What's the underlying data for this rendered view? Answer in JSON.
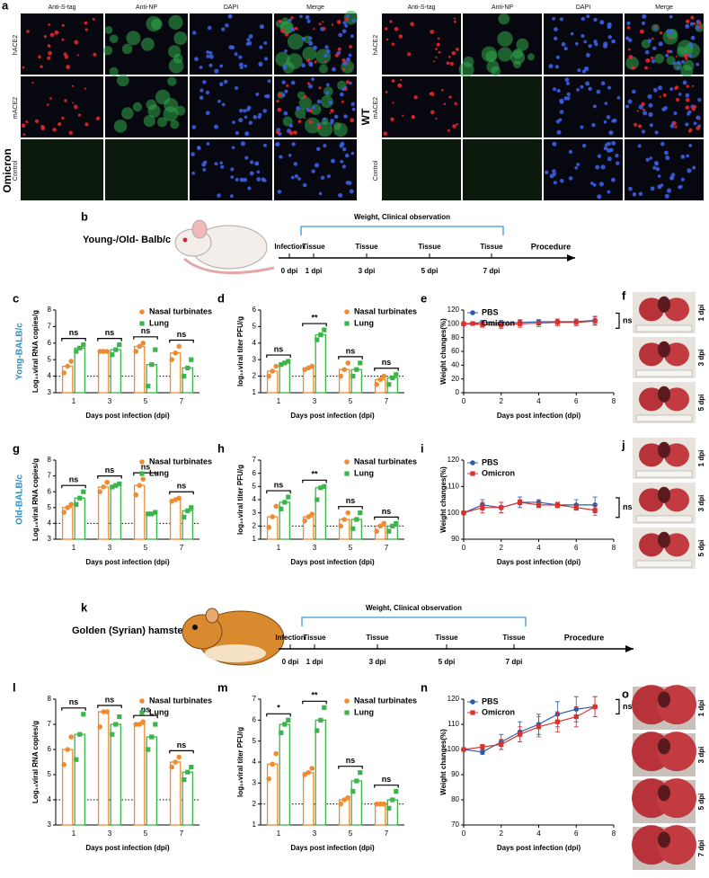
{
  "figure_a": {
    "panel": "a",
    "groups": [
      {
        "label": "Omicron",
        "columns": [
          "Anti-S-tag",
          "Anti-NP",
          "DAPI",
          "Merge"
        ],
        "rows": [
          "hACE2",
          "mACE2",
          "Control"
        ]
      },
      {
        "label": "WT",
        "columns": [
          "Anti-S-tag",
          "Anti-NP",
          "DAPI",
          "Merge"
        ],
        "rows": [
          "hACE2",
          "mACE2",
          "Control"
        ]
      }
    ]
  },
  "timelines": [
    {
      "panel": "b",
      "subject": "Young-/Old- Balb/c",
      "bracket": "Weight, Clinical observation",
      "above": [
        "Infection",
        "Tissue",
        "Tissue",
        "Tissue",
        "Tissue"
      ],
      "days": [
        "0 dpi",
        "1 dpi",
        "3 dpi",
        "5 dpi",
        "7 dpi"
      ],
      "end": "Procedure"
    },
    {
      "panel": "k",
      "subject": "Golden (Syrian) hamster",
      "bracket": "Weight, Clinical observation",
      "above": [
        "Infection",
        "Tissue",
        "Tissue",
        "Tissue",
        "Tissue"
      ],
      "days": [
        "0 dpi",
        "1 dpi",
        "3 dpi",
        "5 dpi",
        "7 dpi"
      ],
      "end": "Procedure"
    }
  ],
  "photos": [
    {
      "panel": "f",
      "labels": [
        "1 dpi",
        "3 dpi",
        "5 dpi"
      ]
    },
    {
      "panel": "j",
      "labels": [
        "1 dpi",
        "3 dpi",
        "5 dpi"
      ]
    },
    {
      "panel": "o",
      "labels": [
        "1 dpi",
        "3 dpi",
        "5 dpi",
        "7 dpi"
      ]
    }
  ],
  "chart_data": [
    {
      "type": "bar",
      "panel": "c",
      "side_label": "Yong-BALB/c",
      "categories": [
        "1",
        "3",
        "5",
        "7"
      ],
      "xlabel": "Days post infection (dpi)",
      "ylabel": "Log₁₀viral RNA copies/g",
      "ylim": [
        3,
        8
      ],
      "yticks": [
        3,
        4,
        5,
        6,
        7,
        8
      ],
      "threshold": 4,
      "legend": "upper right",
      "series": [
        {
          "name": "Nasal turbinates",
          "color": "#f28a2e",
          "marker": "circle",
          "values": [
            4.6,
            5.5,
            5.8,
            5.4
          ],
          "points": [
            [
              4.2,
              4.6,
              4.9
            ],
            [
              5.5,
              5.5,
              5.5
            ],
            [
              5.5,
              5.8,
              6.0
            ],
            [
              5.0,
              5.4,
              5.8
            ]
          ]
        },
        {
          "name": "Lung",
          "color": "#3cb44b",
          "marker": "square",
          "values": [
            5.7,
            5.6,
            4.7,
            4.5
          ],
          "points": [
            [
              5.5,
              5.7,
              5.9
            ],
            [
              5.3,
              5.6,
              5.9
            ],
            [
              3.4,
              4.7,
              5.6
            ],
            [
              4.0,
              4.5,
              5.0
            ]
          ]
        }
      ],
      "annotations": [
        "ns",
        "ns",
        "ns",
        "ns"
      ]
    },
    {
      "type": "bar",
      "panel": "d",
      "categories": [
        "1",
        "3",
        "5",
        "7"
      ],
      "xlabel": "Days post infection (dpi)",
      "ylabel": "log₁₀viral titer PFU/g",
      "ylim": [
        1,
        6
      ],
      "yticks": [
        1,
        2,
        3,
        4,
        5,
        6
      ],
      "threshold": 2,
      "legend": "upper right",
      "series": [
        {
          "name": "Nasal turbinates",
          "color": "#f28a2e",
          "marker": "circle",
          "values": [
            2.3,
            2.5,
            2.4,
            1.8
          ],
          "points": [
            [
              2.0,
              2.3,
              2.6
            ],
            [
              2.4,
              2.5,
              2.6
            ],
            [
              2.0,
              2.4,
              2.8
            ],
            [
              1.5,
              1.8,
              2.0
            ]
          ]
        },
        {
          "name": "Lung",
          "color": "#3cb44b",
          "marker": "square",
          "values": [
            2.8,
            4.5,
            2.4,
            1.9
          ],
          "points": [
            [
              2.7,
              2.8,
              2.9
            ],
            [
              4.2,
              4.5,
              4.8
            ],
            [
              2.0,
              2.4,
              2.8
            ],
            [
              1.5,
              1.9,
              2.1
            ]
          ]
        }
      ],
      "annotations": [
        "ns",
        "**",
        "ns",
        "ns"
      ]
    },
    {
      "type": "line",
      "panel": "e",
      "x": [
        0,
        1,
        2,
        3,
        4,
        5,
        6,
        7
      ],
      "xlim": [
        0,
        8
      ],
      "xticks": [
        0,
        2,
        4,
        6,
        8
      ],
      "ylim": [
        0,
        120
      ],
      "yticks": [
        0,
        20,
        40,
        60,
        80,
        100,
        120
      ],
      "xlabel": "Days post infection (dpi)",
      "ylabel": "Weight changes(%)",
      "legend": "upper left",
      "annotation": "ns",
      "series": [
        {
          "name": "PBS",
          "color": "#2a5caa",
          "marker": "circle",
          "values": [
            100,
            102,
            101,
            102,
            103,
            103,
            103,
            105
          ],
          "errors": [
            0,
            3,
            4,
            4,
            3,
            4,
            4,
            6
          ]
        },
        {
          "name": "Omicron",
          "color": "#d9312b",
          "marker": "square",
          "values": [
            100,
            99,
            98,
            100,
            101,
            102,
            102,
            104
          ],
          "errors": [
            0,
            4,
            5,
            5,
            5,
            5,
            5,
            6
          ]
        }
      ]
    },
    {
      "type": "bar",
      "panel": "g",
      "side_label": "Old-BALB/c",
      "categories": [
        "1",
        "3",
        "5",
        "7"
      ],
      "xlabel": "Days post infection (dpi)",
      "ylabel": "Log₁₀viral RNA copies/g",
      "ylim": [
        3,
        8
      ],
      "yticks": [
        3,
        4,
        5,
        6,
        7,
        8
      ],
      "threshold": 4,
      "legend": "upper right",
      "series": [
        {
          "name": "Nasal turbinates",
          "color": "#f28a2e",
          "marker": "circle",
          "values": [
            5.0,
            6.3,
            6.4,
            5.5
          ],
          "points": [
            [
              4.7,
              5.0,
              5.2
            ],
            [
              6.0,
              6.3,
              6.6
            ],
            [
              5.8,
              6.4,
              6.8
            ],
            [
              5.4,
              5.5,
              5.6
            ]
          ]
        },
        {
          "name": "Lung",
          "color": "#3cb44b",
          "marker": "square",
          "values": [
            5.6,
            6.4,
            4.6,
            4.8
          ],
          "points": [
            [
              5.2,
              5.6,
              6.0
            ],
            [
              6.3,
              6.4,
              6.5
            ],
            [
              4.6,
              4.6,
              4.7
            ],
            [
              4.4,
              4.8,
              5.0
            ]
          ]
        }
      ],
      "annotations": [
        "ns",
        "ns",
        "ns",
        "ns"
      ]
    },
    {
      "type": "bar",
      "panel": "h",
      "categories": [
        "1",
        "3",
        "5",
        "7"
      ],
      "xlabel": "Days post infection (dpi)",
      "ylabel": "log₁₀viral titer PFU/g",
      "ylim": [
        1,
        7
      ],
      "yticks": [
        1,
        2,
        3,
        4,
        5,
        6,
        7
      ],
      "threshold": 2,
      "legend": "upper right",
      "series": [
        {
          "name": "Nasal turbinates",
          "color": "#f28a2e",
          "marker": "circle",
          "values": [
            2.7,
            2.7,
            2.5,
            2.0
          ],
          "points": [
            [
              1.9,
              2.7,
              3.5
            ],
            [
              2.4,
              2.7,
              2.9
            ],
            [
              2.0,
              2.5,
              3.0
            ],
            [
              1.6,
              2.0,
              2.2
            ]
          ]
        },
        {
          "name": "Lung",
          "color": "#3cb44b",
          "marker": "square",
          "values": [
            3.8,
            4.9,
            2.5,
            2.0
          ],
          "points": [
            [
              3.3,
              3.8,
              4.2
            ],
            [
              4.0,
              4.9,
              5.0
            ],
            [
              1.8,
              2.5,
              3.0
            ],
            [
              1.6,
              2.0,
              2.2
            ]
          ]
        }
      ],
      "annotations": [
        "ns",
        "**",
        "ns",
        "ns"
      ]
    },
    {
      "type": "line",
      "panel": "i",
      "x": [
        0,
        1,
        2,
        3,
        4,
        5,
        6,
        7
      ],
      "xlim": [
        0,
        8
      ],
      "xticks": [
        0,
        2,
        4,
        6,
        8
      ],
      "ylim": [
        90,
        120
      ],
      "yticks": [
        90,
        100,
        110,
        120
      ],
      "xlabel": "Days post infection (dpi)",
      "ylabel": "Weight changes(%)",
      "legend": "upper left",
      "annotation": "ns",
      "series": [
        {
          "name": "PBS",
          "color": "#2a5caa",
          "marker": "circle",
          "values": [
            100,
            103,
            102,
            104,
            104,
            103,
            103,
            103
          ],
          "errors": [
            0,
            2,
            2,
            2,
            1,
            1,
            2,
            3
          ]
        },
        {
          "name": "Omicron",
          "color": "#d9312b",
          "marker": "square",
          "values": [
            100,
            102,
            102,
            104,
            103,
            103,
            102,
            101
          ],
          "errors": [
            0,
            2,
            2,
            1,
            1,
            1,
            1,
            2
          ]
        }
      ]
    },
    {
      "type": "bar",
      "panel": "l",
      "categories": [
        "1",
        "3",
        "5",
        "7"
      ],
      "xlabel": "Days post infection (dpi)",
      "ylabel": "Log₁₀viral RNA copies/g",
      "ylim": [
        3,
        8
      ],
      "yticks": [
        3,
        4,
        5,
        6,
        7,
        8
      ],
      "threshold": 4,
      "legend": "upper right",
      "series": [
        {
          "name": "Nasal turbinates",
          "color": "#f28a2e",
          "marker": "circle",
          "values": [
            6.0,
            7.5,
            7.0,
            5.5
          ],
          "points": [
            [
              5.4,
              6.0,
              6.5
            ],
            [
              6.9,
              7.5,
              7.5
            ],
            [
              7.0,
              7.0,
              7.1
            ],
            [
              5.3,
              5.5,
              5.7
            ]
          ]
        },
        {
          "name": "Lung",
          "color": "#3cb44b",
          "marker": "square",
          "values": [
            6.6,
            7.0,
            6.5,
            5.1
          ],
          "points": [
            [
              5.6,
              6.6,
              7.4
            ],
            [
              6.6,
              7.0,
              7.3
            ],
            [
              6.0,
              6.5,
              7.0
            ],
            [
              4.8,
              5.1,
              5.3
            ]
          ]
        }
      ],
      "annotations": [
        "ns",
        "ns",
        "ns",
        "ns"
      ]
    },
    {
      "type": "bar",
      "panel": "m",
      "categories": [
        "1",
        "3",
        "5",
        "7"
      ],
      "xlabel": "Days post infection (dpi)",
      "ylabel": "log₁₀viral titer PFU/g",
      "ylim": [
        1,
        7
      ],
      "yticks": [
        1,
        2,
        3,
        4,
        5,
        6,
        7
      ],
      "threshold": 2,
      "legend": "upper right",
      "series": [
        {
          "name": "Nasal turbinates",
          "color": "#f28a2e",
          "marker": "circle",
          "values": [
            3.9,
            3.5,
            2.2,
            2.0
          ],
          "points": [
            [
              3.2,
              3.9,
              4.4
            ],
            [
              3.4,
              3.5,
              3.7
            ],
            [
              2.0,
              2.2,
              2.3
            ],
            [
              2.0,
              2.0,
              2.0
            ]
          ]
        },
        {
          "name": "Lung",
          "color": "#3cb44b",
          "marker": "square",
          "values": [
            5.8,
            6.0,
            3.1,
            2.2
          ],
          "points": [
            [
              5.4,
              5.8,
              6.0
            ],
            [
              5.5,
              6.0,
              6.6
            ],
            [
              2.6,
              3.1,
              3.5
            ],
            [
              1.8,
              2.2,
              2.6
            ]
          ]
        }
      ],
      "annotations": [
        "*",
        "**",
        "ns",
        "ns"
      ]
    },
    {
      "type": "line",
      "panel": "n",
      "x": [
        0,
        1,
        2,
        3,
        4,
        5,
        6,
        7
      ],
      "xlim": [
        0,
        8
      ],
      "xticks": [
        0,
        2,
        4,
        6,
        8
      ],
      "ylim": [
        70,
        120
      ],
      "yticks": [
        70,
        80,
        90,
        100,
        110,
        120
      ],
      "xlabel": "Days post infection (dpi)",
      "ylabel": "Weight changes(%)",
      "legend": "upper left",
      "annotation": "ns",
      "series": [
        {
          "name": "PBS",
          "color": "#2a5caa",
          "marker": "circle",
          "values": [
            100,
            99,
            103,
            107,
            110,
            114,
            116,
            117
          ],
          "errors": [
            0,
            1,
            3,
            4,
            4,
            5,
            5,
            4
          ]
        },
        {
          "name": "Omicron",
          "color": "#d9312b",
          "marker": "square",
          "values": [
            100,
            101,
            102,
            106,
            109,
            111,
            113,
            117
          ],
          "errors": [
            0,
            1,
            2,
            3,
            4,
            4,
            4,
            4
          ]
        }
      ]
    }
  ]
}
